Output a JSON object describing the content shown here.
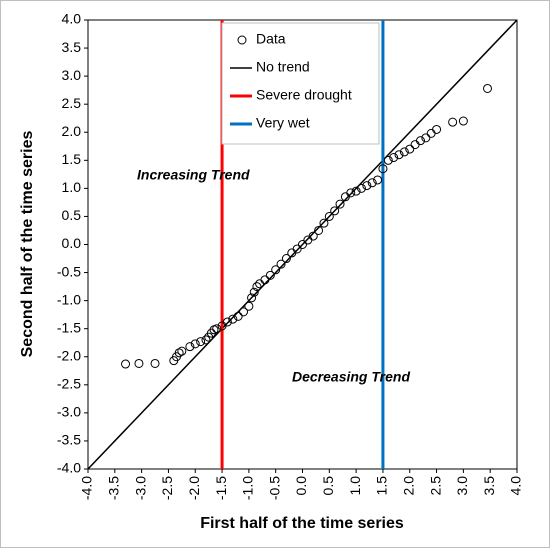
{
  "chart_data": {
    "type": "scatter",
    "xlabel": "First half of the time series",
    "ylabel": "Second half of the time series",
    "xlim": [
      -4,
      4
    ],
    "ylim": [
      -4,
      4
    ],
    "xticks": [
      {
        "value": -4,
        "label": "-4.0"
      },
      -3.5,
      {
        "value": -3,
        "label": "-3.0"
      },
      -2.5,
      {
        "value": -2,
        "label": "-2.0"
      },
      -1.5,
      {
        "value": -1,
        "label": "-1.0"
      },
      -0.5,
      {
        "value": 0,
        "label": "0.0"
      },
      0.5,
      {
        "value": 1,
        "label": "1.0"
      },
      1.5,
      {
        "value": 2,
        "label": "2.0"
      },
      2.5,
      {
        "value": 3,
        "label": "3.0"
      },
      3.5,
      {
        "value": 4,
        "label": "4.0"
      }
    ],
    "yticks": [
      {
        "value": -4,
        "label": "-4.0"
      },
      -3.5,
      {
        "value": -3,
        "label": "-3.0"
      },
      -2.5,
      {
        "value": -2,
        "label": "-2.0"
      },
      -1.5,
      {
        "value": -1,
        "label": "-1.0"
      },
      -0.5,
      {
        "value": 0,
        "label": "0.0"
      },
      0.5,
      {
        "value": 1,
        "label": "1.0"
      },
      1.5,
      {
        "value": 2,
        "label": "2.0"
      },
      2.5,
      {
        "value": 3,
        "label": "3.0"
      },
      3.5,
      {
        "value": 4,
        "label": "4.0"
      }
    ],
    "series": [
      {
        "name": "Data",
        "color": "#000000",
        "x": [
          -3.3,
          -3.05,
          -2.75,
          -2.4,
          -2.35,
          -2.3,
          -2.25,
          -2.1,
          -2.0,
          -1.9,
          -1.8,
          -1.75,
          -1.7,
          -1.65,
          -1.6,
          -1.5,
          -1.4,
          -1.3,
          -1.2,
          -1.1,
          -1.0,
          -0.95,
          -0.9,
          -0.85,
          -0.8,
          -0.7,
          -0.6,
          -0.5,
          -0.4,
          -0.3,
          -0.2,
          -0.1,
          0,
          0.1,
          0.2,
          0.3,
          0.4,
          0.5,
          0.6,
          0.7,
          0.8,
          0.9,
          1.0,
          1.1,
          1.2,
          1.3,
          1.4,
          1.5,
          1.6,
          1.7,
          1.8,
          1.9,
          2.0,
          2.1,
          2.2,
          2.3,
          2.4,
          2.5,
          2.8,
          3.0,
          3.45
        ],
        "values": [
          -2.13,
          -2.12,
          -2.12,
          -2.07,
          -2.0,
          -1.93,
          -1.9,
          -1.82,
          -1.77,
          -1.73,
          -1.7,
          -1.65,
          -1.58,
          -1.52,
          -1.5,
          -1.45,
          -1.38,
          -1.33,
          -1.28,
          -1.2,
          -1.1,
          -0.95,
          -0.85,
          -0.75,
          -0.7,
          -0.63,
          -0.55,
          -0.45,
          -0.35,
          -0.25,
          -0.15,
          -0.08,
          0,
          0.08,
          0.15,
          0.25,
          0.38,
          0.5,
          0.6,
          0.72,
          0.85,
          0.92,
          0.95,
          1.0,
          1.05,
          1.1,
          1.15,
          1.35,
          1.5,
          1.55,
          1.6,
          1.65,
          1.7,
          1.78,
          1.85,
          1.9,
          1.98,
          2.05,
          2.18,
          2.2,
          2.78
        ]
      }
    ],
    "lines": [
      {
        "name": "No trend",
        "color": "#000000"
      },
      {
        "name": "Severe drought",
        "color": "#ff0000",
        "x": -1.5
      },
      {
        "name": "Very wet",
        "color": "#0070c0",
        "x": 1.5
      }
    ],
    "annotations": [
      {
        "text": "Increasing Trend"
      },
      {
        "text": "Decreasing Trend"
      }
    ]
  }
}
